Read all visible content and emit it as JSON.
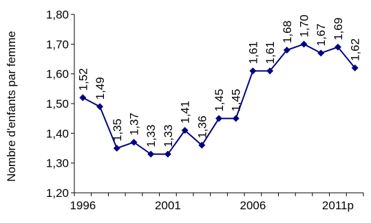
{
  "chart_data": {
    "type": "line",
    "title": "",
    "xlabel": "",
    "ylabel": "Nombre d'enfants par femme",
    "x": [
      "1996",
      "1997",
      "1998",
      "1999",
      "2000",
      "2001",
      "2002",
      "2003",
      "2004",
      "2005",
      "2006",
      "2007",
      "2008",
      "2009",
      "2010",
      "2011p",
      "2012"
    ],
    "x_tick_labels": [
      "1996",
      "2001",
      "2006",
      "2011p"
    ],
    "y_tick_labels": [
      "1,20",
      "1,30",
      "1,40",
      "1,50",
      "1,60",
      "1,70",
      "1,80"
    ],
    "ylim": [
      1.2,
      1.8
    ],
    "grid": false,
    "legend": "none",
    "series": [
      {
        "values": [
          1.52,
          1.49,
          1.35,
          1.37,
          1.33,
          1.33,
          1.41,
          1.36,
          1.45,
          1.45,
          1.61,
          1.61,
          1.68,
          1.7,
          1.67,
          1.69,
          1.62
        ],
        "data_labels": [
          "1,52",
          "1,49",
          "1,35",
          "1,37",
          "1,33",
          "1,33",
          "1,41",
          "1,36",
          "1,45",
          "1,45",
          "1,61",
          "1,61",
          "1,68",
          "1,70",
          "1,67",
          "1,69",
          "1,62"
        ],
        "color": "#000080"
      }
    ]
  }
}
